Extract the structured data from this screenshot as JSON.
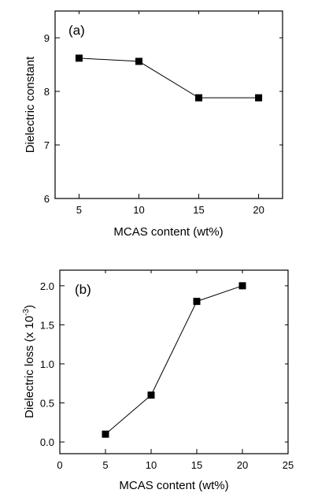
{
  "chart_data": [
    {
      "type": "line",
      "panel_label": "(a)",
      "xlabel": "MCAS content (wt%)",
      "ylabel": "Dielectric constant",
      "xlim": [
        3,
        22
      ],
      "ylim": [
        6,
        9.5
      ],
      "xticks": [
        5,
        10,
        15,
        20
      ],
      "xtick_labels": [
        "5",
        "10",
        "15",
        "20"
      ],
      "yticks": [
        6,
        7,
        8,
        9
      ],
      "ytick_labels": [
        "6",
        "7",
        "8",
        "9"
      ],
      "grid": false,
      "series": [
        {
          "x": [
            5,
            10,
            15,
            20
          ],
          "y": [
            8.62,
            8.56,
            7.88,
            7.88
          ],
          "marker": "square"
        }
      ]
    },
    {
      "type": "line",
      "panel_label": "(b)",
      "xlabel": "MCAS content (wt%)",
      "ylabel_main": "Dielectric loss (x 10",
      "ylabel_exp": "-3",
      "ylabel_close": ")",
      "xlim": [
        0,
        25
      ],
      "ylim": [
        -0.15,
        2.2
      ],
      "xticks": [
        0,
        5,
        10,
        15,
        20,
        25
      ],
      "xtick_labels": [
        "0",
        "5",
        "10",
        "15",
        "20",
        "25"
      ],
      "yticks": [
        0,
        0.5,
        1.0,
        1.5,
        2.0
      ],
      "ytick_labels": [
        "0.0",
        "0.5",
        "1.0",
        "1.5",
        "2.0"
      ],
      "grid": false,
      "series": [
        {
          "x": [
            5,
            10,
            15,
            20
          ],
          "y": [
            0.1,
            0.6,
            1.8,
            2.0
          ],
          "marker": "square"
        }
      ]
    }
  ]
}
